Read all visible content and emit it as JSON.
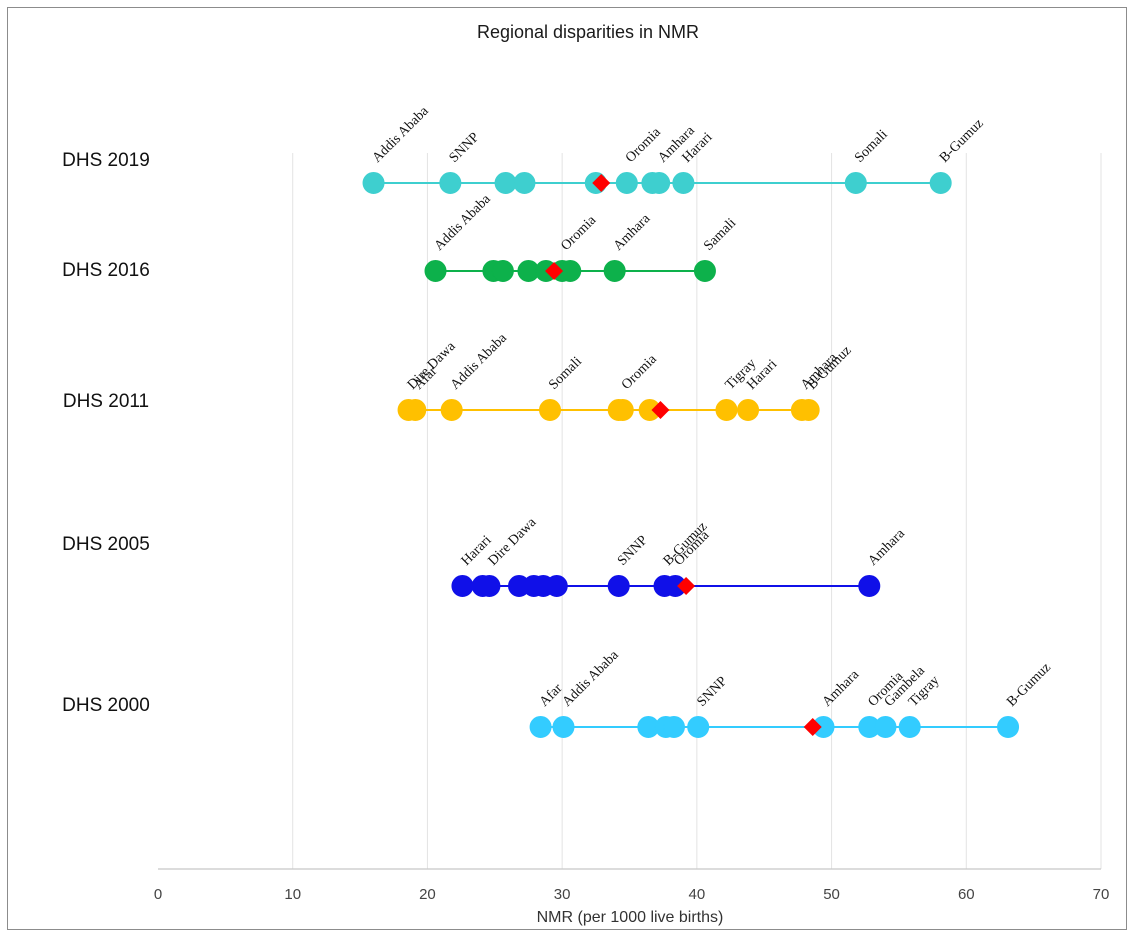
{
  "chart_data": {
    "type": "scatter",
    "title": "Regional disparities in NMR",
    "xlabel": "NMR (per 1000 live births)",
    "xlim": [
      0,
      70
    ],
    "xticks": [
      0,
      10,
      20,
      30,
      40,
      50,
      60,
      70
    ],
    "grid": true,
    "series": [
      {
        "name": "DHS 2019",
        "color": "#3ecfcf",
        "points": [
          16.0,
          21.7,
          25.8,
          27.2,
          32.5,
          34.8,
          36.7,
          37.2,
          39.0,
          51.8,
          58.1
        ],
        "national": 32.9,
        "labels": [
          {
            "text": "Addis Ababa",
            "x": 16.0
          },
          {
            "text": "SNNP",
            "x": 21.7
          },
          {
            "text": "Oromia",
            "x": 34.8
          },
          {
            "text": "Amhara",
            "x": 37.2
          },
          {
            "text": "Harari",
            "x": 39.0
          },
          {
            "text": "Somali",
            "x": 51.8
          },
          {
            "text": "B-Gumuz",
            "x": 58.1
          }
        ]
      },
      {
        "name": "DHS 2016",
        "color": "#0db14b",
        "points": [
          20.6,
          24.9,
          25.6,
          27.5,
          28.8,
          30.0,
          30.6,
          33.9,
          40.6
        ],
        "national": 29.4,
        "labels": [
          {
            "text": "Addis Ababa",
            "x": 20.6
          },
          {
            "text": "Oromia",
            "x": 30.0
          },
          {
            "text": "Amhara",
            "x": 33.9
          },
          {
            "text": "Samali",
            "x": 40.6
          }
        ]
      },
      {
        "name": "DHS 2011",
        "color": "#ffc000",
        "points": [
          18.6,
          19.1,
          21.8,
          29.1,
          34.2,
          34.5,
          36.5,
          42.2,
          43.8,
          47.8,
          48.3
        ],
        "national": 37.3,
        "labels": [
          {
            "text": "Dire Dawa",
            "x": 18.6
          },
          {
            "text": "Afar",
            "x": 19.1
          },
          {
            "text": "Addis Ababa",
            "x": 21.8
          },
          {
            "text": "Somali",
            "x": 29.1
          },
          {
            "text": "Oromia",
            "x": 34.5
          },
          {
            "text": "Tigray",
            "x": 42.2
          },
          {
            "text": "Harari",
            "x": 43.8
          },
          {
            "text": "Amhara",
            "x": 47.8
          },
          {
            "text": "B-Gumuz",
            "x": 48.3
          }
        ]
      },
      {
        "name": "DHS 2005",
        "color": "#1010e8",
        "points": [
          22.6,
          24.1,
          24.6,
          26.8,
          27.9,
          28.6,
          29.6,
          34.2,
          37.6,
          38.4,
          52.8
        ],
        "national": 39.2,
        "labels": [
          {
            "text": "Harari",
            "x": 22.6
          },
          {
            "text": "Dire Dawa",
            "x": 24.6
          },
          {
            "text": "SNNP",
            "x": 34.2
          },
          {
            "text": "B-Gumuz",
            "x": 37.6
          },
          {
            "text": "Oromia",
            "x": 38.4
          },
          {
            "text": "Amhara",
            "x": 52.8
          }
        ]
      },
      {
        "name": "DHS 2000",
        "color": "#33ccff",
        "points": [
          28.4,
          30.1,
          36.4,
          37.7,
          38.3,
          40.1,
          49.4,
          52.8,
          54.0,
          55.8,
          63.1
        ],
        "national": 48.6,
        "labels": [
          {
            "text": "Afar",
            "x": 28.4
          },
          {
            "text": "Addis Ababa",
            "x": 30.1
          },
          {
            "text": "SNNP",
            "x": 40.1
          },
          {
            "text": "Amhara",
            "x": 49.4
          },
          {
            "text": "Oromia",
            "x": 52.8
          },
          {
            "text": "Gambela",
            "x": 54.0
          },
          {
            "text": "Tigray",
            "x": 55.8
          },
          {
            "text": "B-Gumuz",
            "x": 63.1
          }
        ]
      }
    ],
    "marker_color": "#ff0000"
  }
}
